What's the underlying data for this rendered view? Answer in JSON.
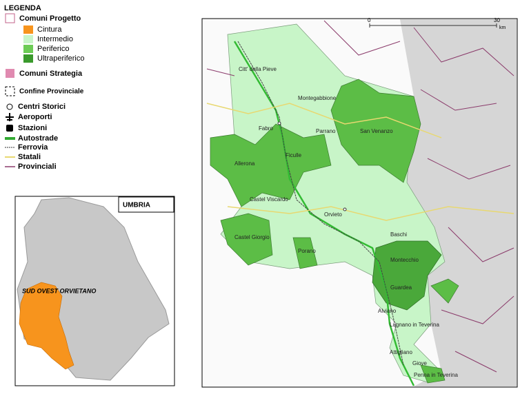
{
  "legend": {
    "title": "LEGENDA",
    "project_label": "Comuni Progetto",
    "classes": [
      "Cintura",
      "Intermedio",
      "Periferico",
      "Ultraperiferico"
    ],
    "strategy": "Comuni Strategia",
    "provincial_border": "Confine Provinciale",
    "symbols": [
      "Centri Storici",
      "Aeroporti",
      "Stazioni",
      "Autostrade",
      "Ferrovia",
      "Statali",
      "Provinciali"
    ]
  },
  "inset": {
    "region": "UMBRIA",
    "area": "SUD OVEST ORVIETANO"
  },
  "map": {
    "scale": {
      "start": "0",
      "end": "30",
      "unit": "km"
    },
    "towns": [
      "Citt' della Pieve",
      "Montegabbione",
      "Fabro",
      "Parrano",
      "San Venanzo",
      "Ficulle",
      "Allerona",
      "Castel Viscardo",
      "Orvieto",
      "Castel Giorgio",
      "Porano",
      "Baschi",
      "Montecchio",
      "Guardea",
      "Alviano",
      "Lugnano in Teverina",
      "Attigliano",
      "Giove",
      "Penna in Teverina"
    ]
  }
}
